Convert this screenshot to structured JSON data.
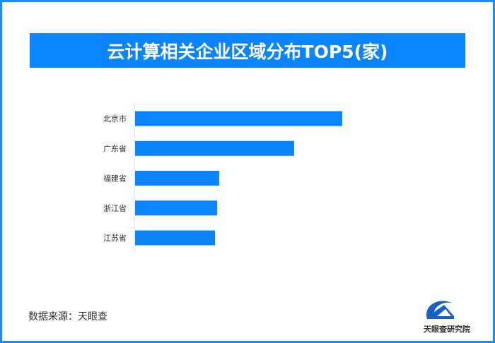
{
  "chart_data": {
    "type": "bar",
    "orientation": "horizontal",
    "title": "云计算相关企业区域分布TOP5(家)",
    "categories": [
      "北京市",
      "广东省",
      "福建省",
      "浙江省",
      "江苏省"
    ],
    "values": [
      100,
      76.8,
      40.6,
      39.6,
      38.6
    ],
    "value_note": "relative (no values printed)",
    "bar_color": "#0a84ff",
    "grid": false
  },
  "source": "数据来源：天眼查",
  "logo": {
    "text": "天眼查研究院"
  },
  "colors": {
    "accent": "#0a84ff",
    "border": "#1a8cff"
  }
}
